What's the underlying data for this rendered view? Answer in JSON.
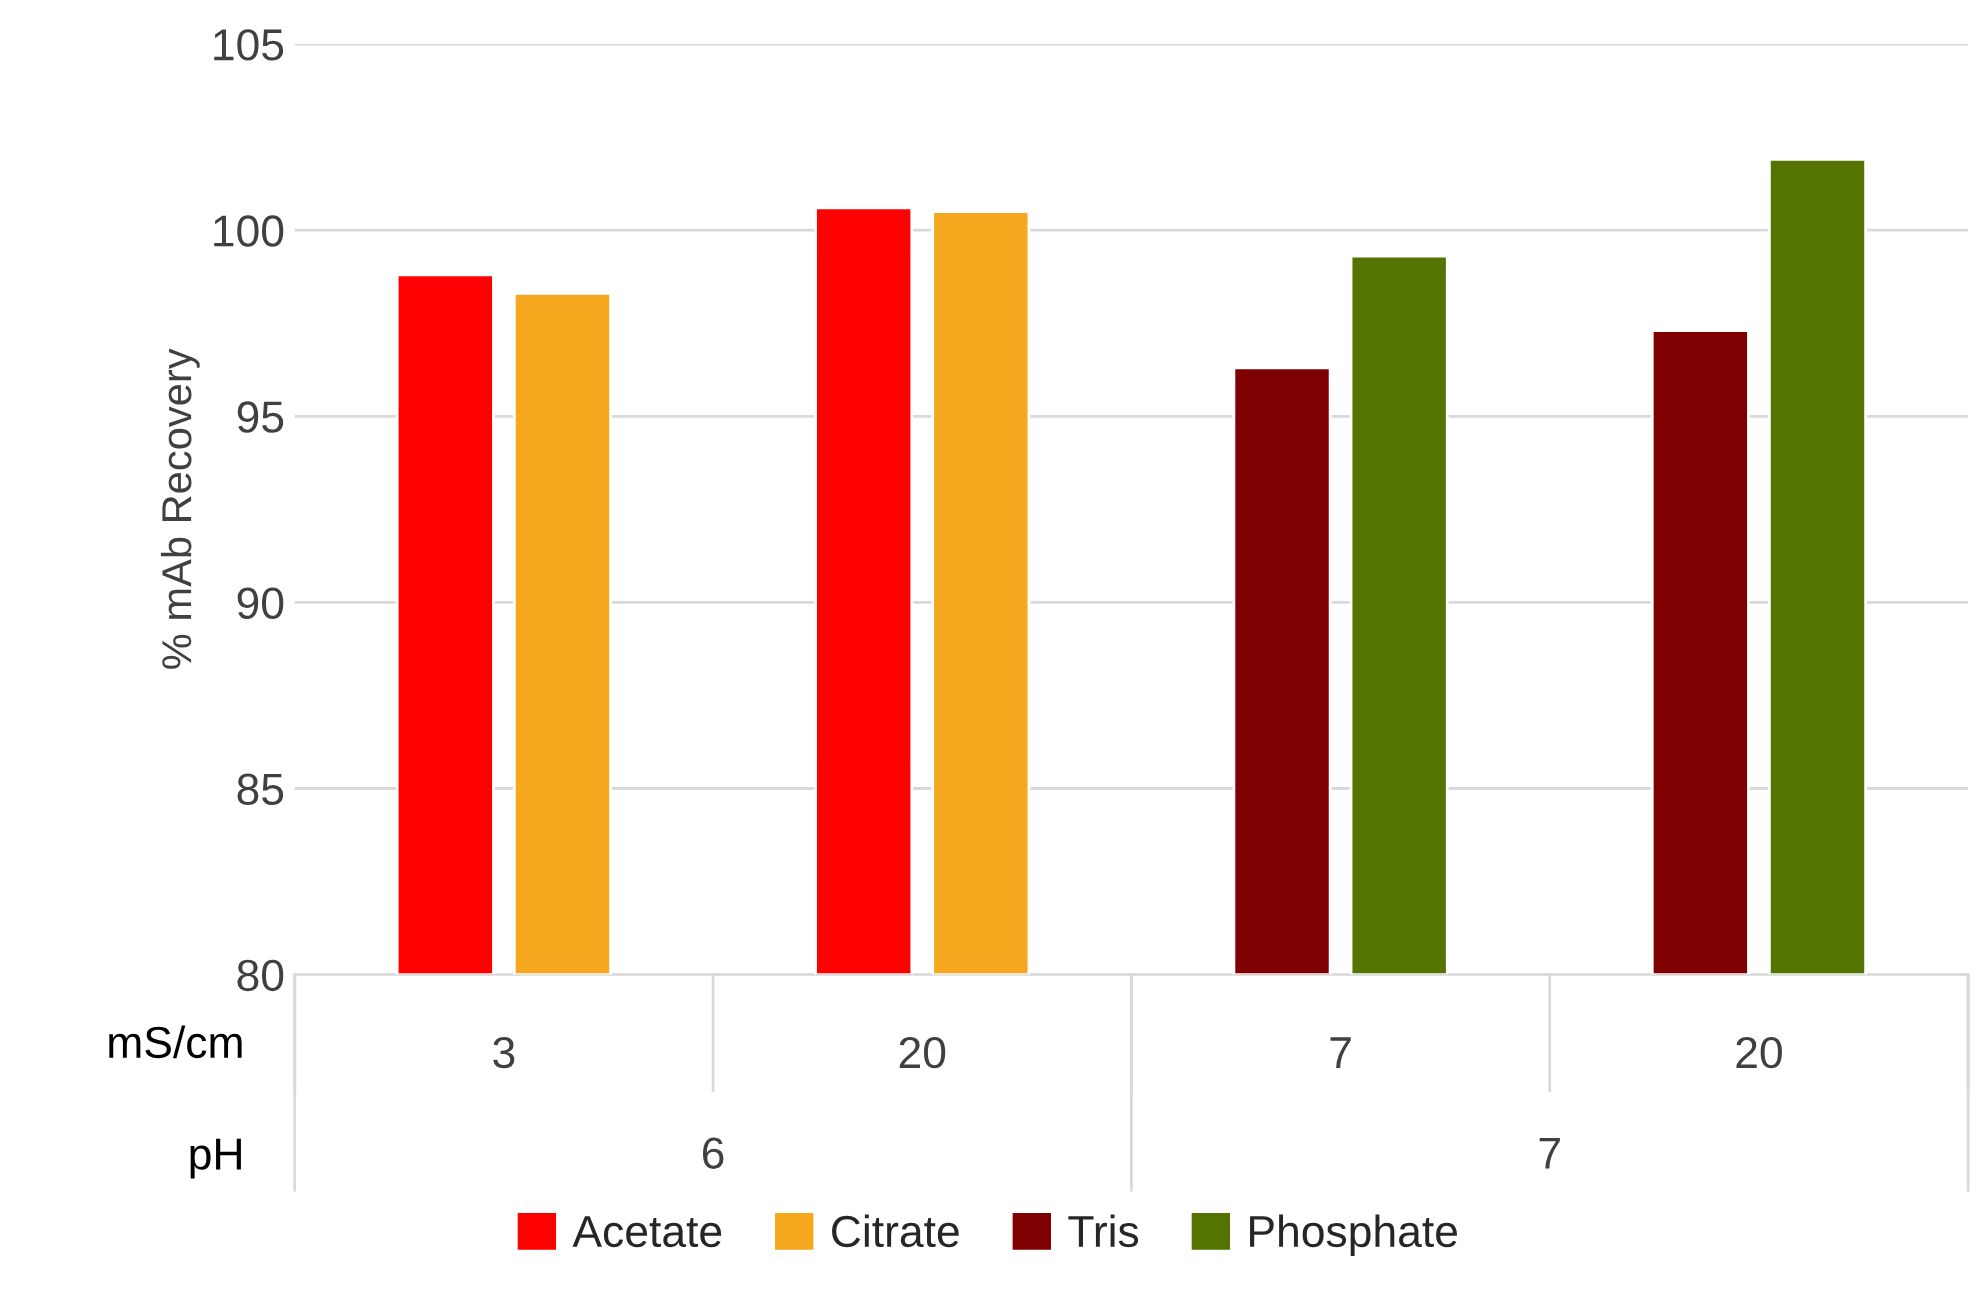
{
  "chart_data": {
    "type": "bar",
    "ylabel": "% mAb Recovery",
    "categories": [
      "3",
      "20",
      "7",
      "20"
    ],
    "series": [
      {
        "name": "Acetate",
        "color": "#ff0000",
        "values": [
          98.8,
          100.6,
          null,
          null
        ]
      },
      {
        "name": "Citrate",
        "color": "#f5a71e",
        "values": [
          98.3,
          100.5,
          null,
          null
        ]
      },
      {
        "name": "Tris",
        "color": "#7f0000",
        "values": [
          null,
          null,
          96.3,
          97.3
        ]
      },
      {
        "name": "Phosphate",
        "color": "#557300",
        "values": [
          null,
          null,
          99.3,
          101.9
        ]
      }
    ],
    "ylim": [
      80,
      105
    ],
    "yticks": [
      80,
      85,
      90,
      95,
      100,
      105
    ],
    "grid": "y",
    "legend": "bottom",
    "annotations": [
      "mS/cm",
      "pH",
      "6",
      "7"
    ]
  }
}
